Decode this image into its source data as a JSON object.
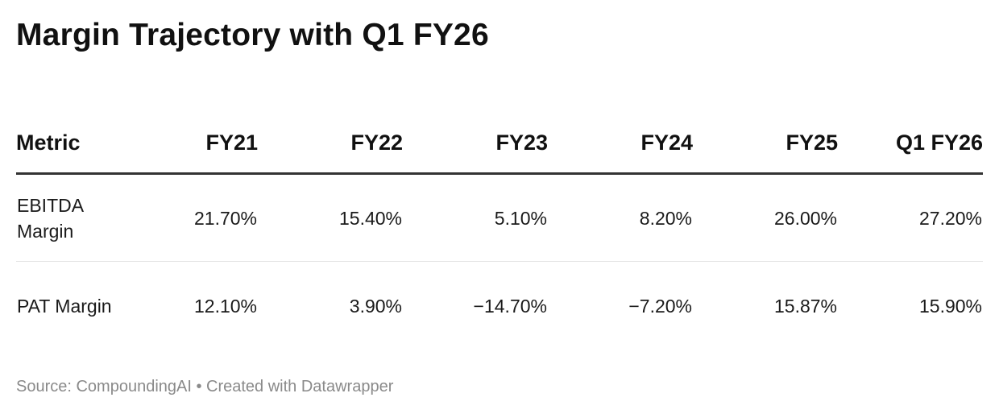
{
  "title": "Margin Trajectory with Q1 FY26",
  "source": "Source: CompoundingAI • Created with Datawrapper",
  "chart_data": {
    "type": "table",
    "title": "Margin Trajectory with Q1 FY26",
    "columns": [
      "Metric",
      "FY21",
      "FY22",
      "FY23",
      "FY24",
      "FY25",
      "Q1 FY26"
    ],
    "rows": [
      {
        "metric": "EBITDA Margin",
        "values": [
          "21.70%",
          "15.40%",
          "5.10%",
          "8.20%",
          "26.00%",
          "27.20%"
        ]
      },
      {
        "metric": "PAT Margin",
        "values": [
          "12.10%",
          "3.90%",
          "−14.70%",
          "−7.20%",
          "15.87%",
          "15.90%"
        ]
      }
    ]
  }
}
